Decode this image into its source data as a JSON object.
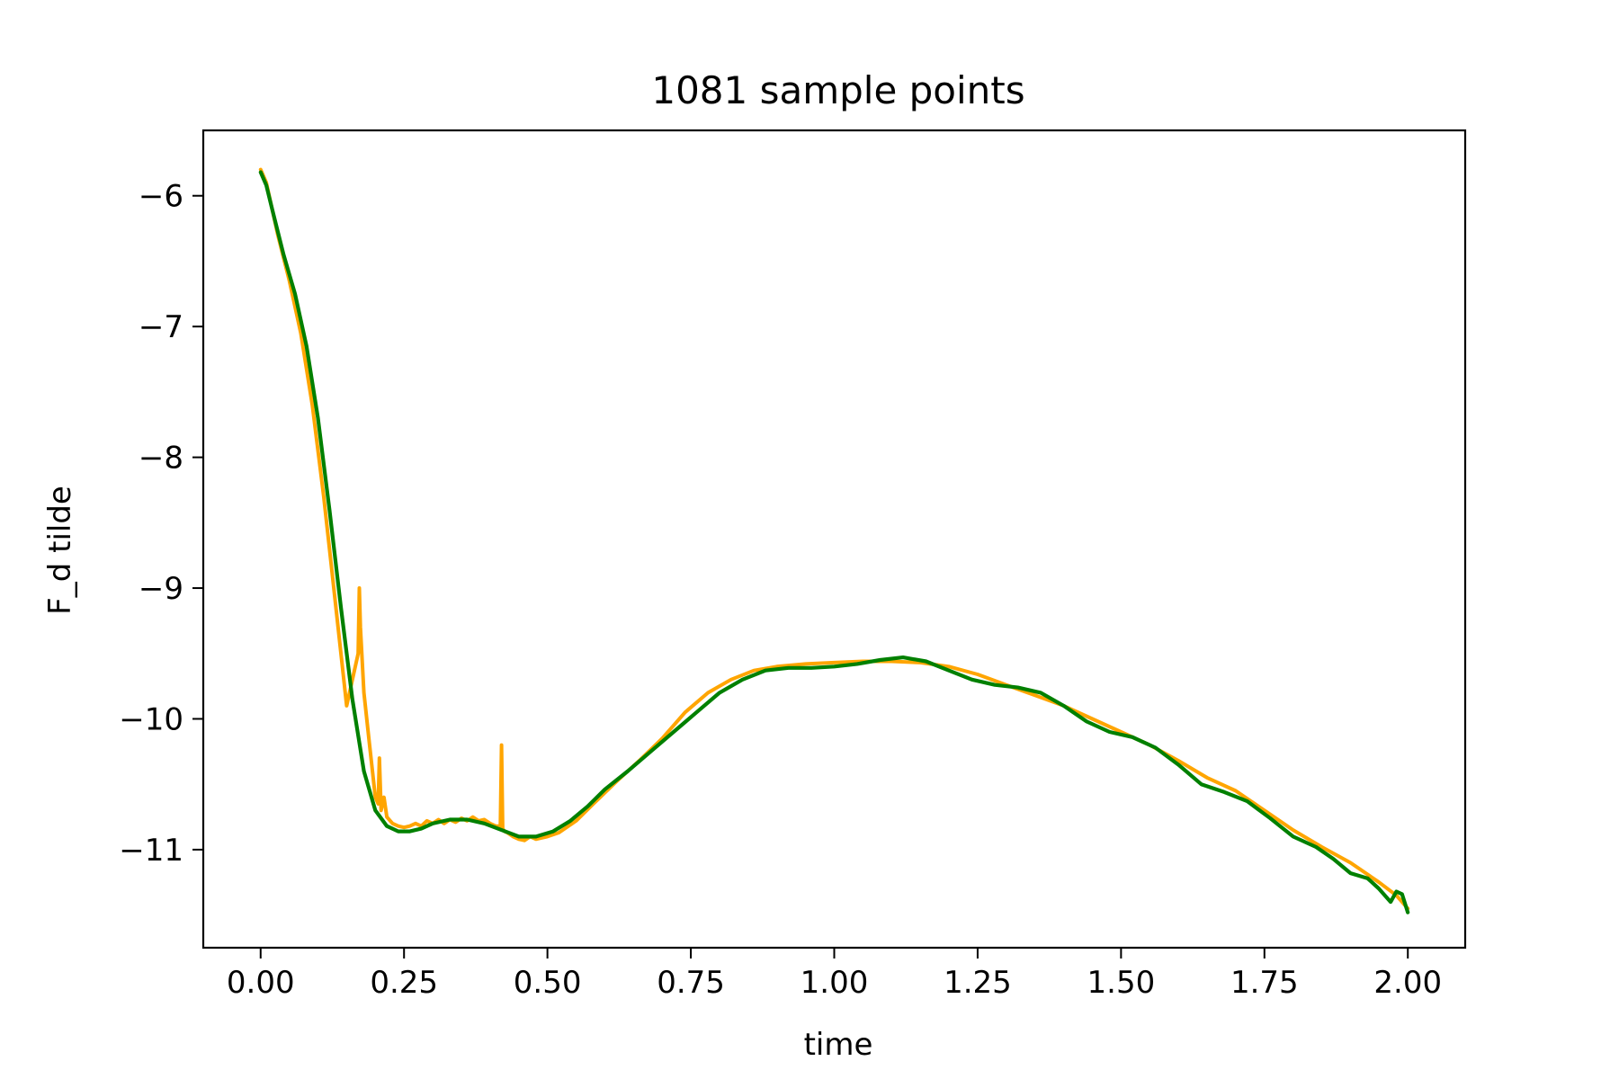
{
  "chart_data": {
    "type": "line",
    "title": "1081 sample points",
    "xlabel": "time",
    "ylabel": "F_d  tilde",
    "xlim": [
      -0.1,
      2.1
    ],
    "ylim": [
      -11.75,
      -5.5
    ],
    "xticks": [
      0.0,
      0.25,
      0.5,
      0.75,
      1.0,
      1.25,
      1.5,
      1.75,
      2.0
    ],
    "xtick_labels": [
      "0.00",
      "0.25",
      "0.50",
      "0.75",
      "1.00",
      "1.25",
      "1.50",
      "1.75",
      "2.00"
    ],
    "yticks": [
      -6,
      -7,
      -8,
      -9,
      -10,
      -11
    ],
    "ytick_labels": [
      "−6",
      "−7",
      "−8",
      "−9",
      "−10",
      "−11"
    ],
    "grid": false,
    "legend": "none",
    "series": [
      {
        "color": "#ffa500",
        "x": [
          0.0,
          0.01,
          0.03,
          0.05,
          0.07,
          0.09,
          0.11,
          0.13,
          0.15,
          0.17,
          0.172,
          0.174,
          0.18,
          0.19,
          0.2,
          0.205,
          0.207,
          0.21,
          0.215,
          0.22,
          0.23,
          0.24,
          0.25,
          0.26,
          0.27,
          0.28,
          0.29,
          0.3,
          0.31,
          0.32,
          0.33,
          0.34,
          0.35,
          0.36,
          0.37,
          0.38,
          0.39,
          0.4,
          0.41,
          0.418,
          0.42,
          0.422,
          0.425,
          0.43,
          0.44,
          0.45,
          0.46,
          0.47,
          0.48,
          0.5,
          0.52,
          0.55,
          0.58,
          0.62,
          0.66,
          0.7,
          0.74,
          0.78,
          0.82,
          0.86,
          0.9,
          0.95,
          1.0,
          1.05,
          1.1,
          1.15,
          1.2,
          1.25,
          1.3,
          1.35,
          1.4,
          1.45,
          1.5,
          1.55,
          1.6,
          1.65,
          1.7,
          1.75,
          1.8,
          1.85,
          1.9,
          1.95,
          1.98,
          2.0
        ],
        "y": [
          -5.8,
          -5.9,
          -6.3,
          -6.65,
          -7.05,
          -7.6,
          -8.3,
          -9.1,
          -9.9,
          -9.5,
          -9.0,
          -9.3,
          -9.8,
          -10.2,
          -10.6,
          -10.65,
          -10.3,
          -10.7,
          -10.6,
          -10.75,
          -10.8,
          -10.82,
          -10.83,
          -10.82,
          -10.8,
          -10.82,
          -10.78,
          -10.8,
          -10.77,
          -10.8,
          -10.77,
          -10.79,
          -10.76,
          -10.78,
          -10.75,
          -10.78,
          -10.77,
          -10.8,
          -10.82,
          -10.82,
          -10.2,
          -10.84,
          -10.86,
          -10.87,
          -10.9,
          -10.92,
          -10.93,
          -10.9,
          -10.92,
          -10.9,
          -10.87,
          -10.78,
          -10.65,
          -10.48,
          -10.32,
          -10.15,
          -9.95,
          -9.8,
          -9.7,
          -9.63,
          -9.6,
          -9.58,
          -9.57,
          -9.56,
          -9.56,
          -9.57,
          -9.6,
          -9.66,
          -9.74,
          -9.82,
          -9.9,
          -10.0,
          -10.1,
          -10.2,
          -10.32,
          -10.45,
          -10.55,
          -10.7,
          -10.85,
          -10.98,
          -11.1,
          -11.25,
          -11.35,
          -11.45
        ]
      },
      {
        "color": "#008000",
        "x": [
          0.0,
          0.01,
          0.02,
          0.04,
          0.06,
          0.08,
          0.1,
          0.12,
          0.14,
          0.16,
          0.18,
          0.2,
          0.22,
          0.24,
          0.26,
          0.28,
          0.3,
          0.33,
          0.36,
          0.39,
          0.42,
          0.45,
          0.48,
          0.51,
          0.54,
          0.57,
          0.6,
          0.64,
          0.68,
          0.72,
          0.76,
          0.8,
          0.84,
          0.88,
          0.92,
          0.96,
          1.0,
          1.04,
          1.08,
          1.12,
          1.16,
          1.2,
          1.24,
          1.28,
          1.32,
          1.36,
          1.4,
          1.44,
          1.48,
          1.52,
          1.56,
          1.6,
          1.64,
          1.68,
          1.72,
          1.76,
          1.8,
          1.84,
          1.87,
          1.9,
          1.93,
          1.95,
          1.97,
          1.98,
          1.99,
          2.0
        ],
        "y": [
          -5.82,
          -5.92,
          -6.1,
          -6.45,
          -6.75,
          -7.15,
          -7.7,
          -8.4,
          -9.15,
          -9.85,
          -10.4,
          -10.7,
          -10.82,
          -10.86,
          -10.86,
          -10.84,
          -10.8,
          -10.77,
          -10.77,
          -10.8,
          -10.85,
          -10.9,
          -10.9,
          -10.86,
          -10.78,
          -10.67,
          -10.54,
          -10.4,
          -10.25,
          -10.1,
          -9.95,
          -9.8,
          -9.7,
          -9.63,
          -9.61,
          -9.61,
          -9.6,
          -9.58,
          -9.55,
          -9.53,
          -9.56,
          -9.63,
          -9.7,
          -9.74,
          -9.76,
          -9.8,
          -9.9,
          -10.02,
          -10.1,
          -10.14,
          -10.22,
          -10.35,
          -10.5,
          -10.56,
          -10.63,
          -10.76,
          -10.9,
          -10.98,
          -11.07,
          -11.18,
          -11.22,
          -11.3,
          -11.4,
          -11.32,
          -11.34,
          -11.48
        ]
      }
    ]
  }
}
